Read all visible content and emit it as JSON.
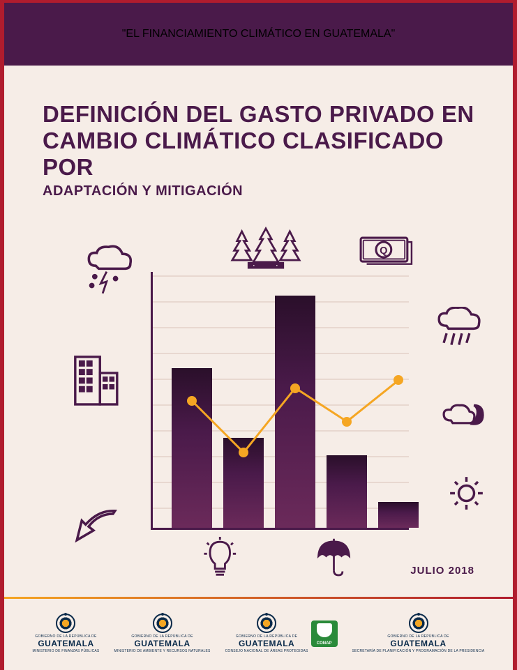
{
  "header": {
    "text": "\"EL FINANCIAMIENTO CLIMÁTICO EN GUATEMALA\""
  },
  "title": {
    "main_line1": "DEFINICIÓN DEL GASTO PRIVADO EN",
    "main_line2": "CAMBIO CLIMÁTICO CLASIFICADO POR",
    "sub": "ADAPTACIÓN Y MITIGACIÓN"
  },
  "chart": {
    "type": "bar_with_line",
    "bar_color_gradient": [
      "#2a0f2a",
      "#4a1a4a",
      "#6b2a5a"
    ],
    "grid_color": "#e8d8d0",
    "axis_color": "#4a1a4a",
    "line_color": "#f5a623",
    "marker_color": "#f5a623",
    "line_width": 3,
    "marker_size": 14,
    "grid_lines_y_percent": [
      8,
      18,
      28,
      38,
      48,
      58,
      68,
      78,
      88,
      98
    ],
    "bars": [
      {
        "x_percent": 8,
        "height_percent": 62
      },
      {
        "x_percent": 28,
        "height_percent": 35
      },
      {
        "x_percent": 48,
        "height_percent": 90
      },
      {
        "x_percent": 68,
        "height_percent": 28
      },
      {
        "x_percent": 88,
        "height_percent": 10
      }
    ],
    "line_points": [
      {
        "x_percent": 16,
        "y_percent": 50
      },
      {
        "x_percent": 36,
        "y_percent": 70
      },
      {
        "x_percent": 56,
        "y_percent": 45
      },
      {
        "x_percent": 76,
        "y_percent": 58
      },
      {
        "x_percent": 96,
        "y_percent": 42
      }
    ]
  },
  "icons": {
    "storm": "storm-cloud-icon",
    "trees": "trees-icon",
    "money": "money-icon",
    "rain": "rain-cloud-icon",
    "building": "building-icon",
    "moon": "moon-cloud-icon",
    "sun": "sun-icon",
    "arrow": "arrow-icon",
    "bulb": "lightbulb-icon",
    "umbrella": "umbrella-icon"
  },
  "date": "JULIO 2018",
  "footer_logos": [
    {
      "top": "GOBIERNO DE LA REPÚBLICA DE",
      "name": "GUATEMALA",
      "sub": "MINISTERIO DE FINANZAS PÚBLICAS",
      "has_conap": false
    },
    {
      "top": "GOBIERNO DE LA REPÚBLICA DE",
      "name": "GUATEMALA",
      "sub": "MINISTERIO DE AMBIENTE Y RECURSOS NATURALES",
      "has_conap": false
    },
    {
      "top": "GOBIERNO DE LA REPÚBLICA DE",
      "name": "GUATEMALA",
      "sub": "CONSEJO NACIONAL DE ÁREAS PROTEGIDAS",
      "has_conap": true
    },
    {
      "top": "GOBIERNO DE LA REPÚBLICA DE",
      "name": "GUATEMALA",
      "sub": "SECRETARÍA DE PLANIFICACIÓN Y PROGRAMACIÓN DE LA PRESIDENCIA",
      "has_conap": false
    }
  ],
  "colors": {
    "primary": "#4a1a4a",
    "accent": "#f5a623",
    "border": "#b01c2e",
    "background": "#f6ede7"
  }
}
